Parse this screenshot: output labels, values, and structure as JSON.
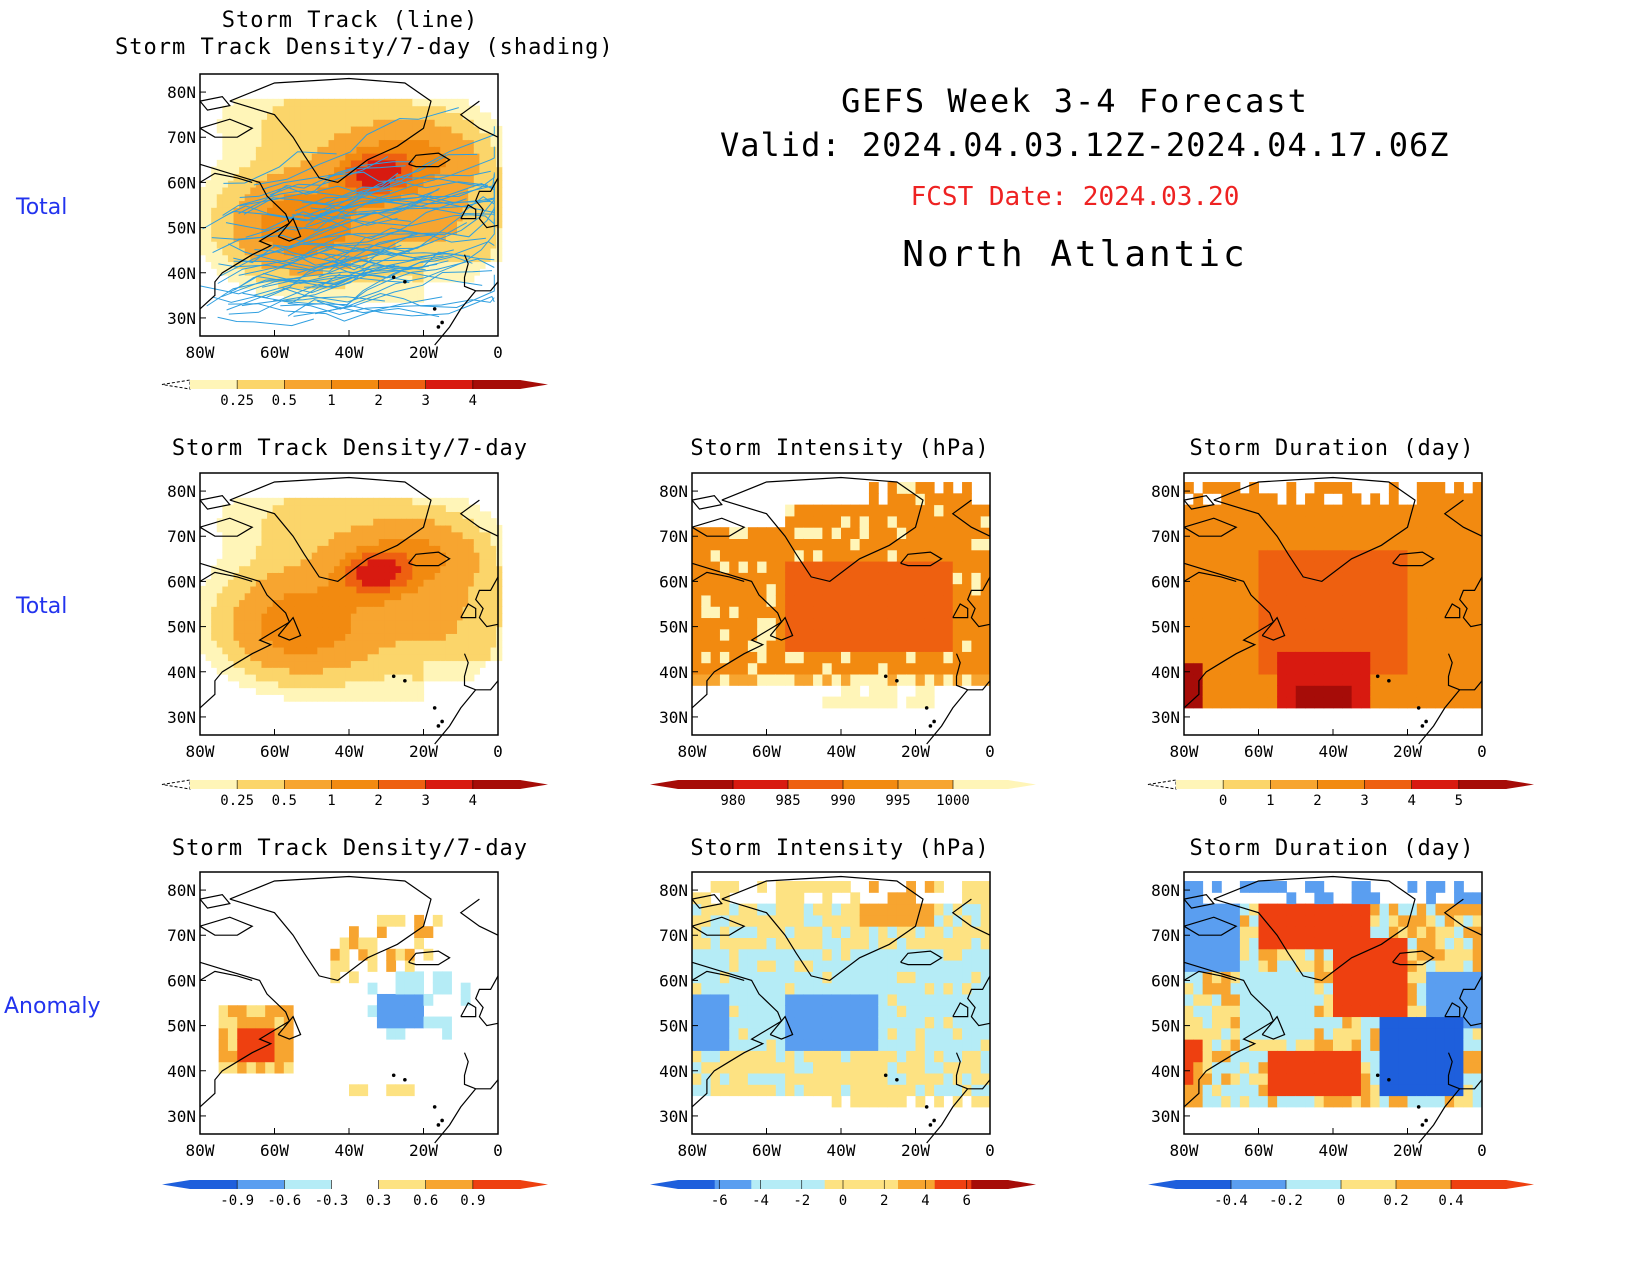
{
  "header": {
    "line1": "GEFS Week 3-4 Forecast",
    "line2": "Valid: 2024.04.03.12Z-2024.04.17.06Z",
    "fcst": "FCST Date: 2024.03.20",
    "region": "North Atlantic"
  },
  "row_labels": {
    "top": "Total",
    "middle": "Total",
    "bottom": "Anomaly"
  },
  "axes": {
    "lat_ticks": [
      "80N",
      "70N",
      "60N",
      "50N",
      "40N",
      "30N"
    ],
    "lon_ticks": [
      "80W",
      "60W",
      "40W",
      "20W",
      "0"
    ]
  },
  "panels": {
    "track": {
      "title1": "Storm Track (line)",
      "title2": "Storm Track Density/7-day (shading)"
    },
    "density": {
      "title": "Storm Track Density/7-day"
    },
    "intensity": {
      "title": "Storm Intensity (hPa)"
    },
    "duration": {
      "title": "Storm Duration (day)"
    },
    "density_anom": {
      "title": "Storm Track Density/7-day"
    },
    "intensity_anom": {
      "title": "Storm Intensity (hPa)"
    },
    "duration_anom": {
      "title": "Storm Duration (day)"
    }
  },
  "colorbars": {
    "density": {
      "labels": [
        "0.25",
        "0.5",
        "1",
        "2",
        "3",
        "4"
      ],
      "colors": [
        "#fff5b8",
        "#fbd56a",
        "#f7a530",
        "#f28a10",
        "#ee6010",
        "#d81a10",
        "#a60c08"
      ]
    },
    "intensity": {
      "labels": [
        "980",
        "985",
        "990",
        "995",
        "1000"
      ],
      "colors": [
        "#a60c08",
        "#d81a10",
        "#ee6010",
        "#f28a10",
        "#f7a530",
        "#fff5b8"
      ]
    },
    "duration": {
      "labels": [
        "0",
        "1",
        "2",
        "3",
        "4",
        "5"
      ],
      "colors": [
        "#fff5b8",
        "#fbd56a",
        "#f7a530",
        "#f28a10",
        "#ee6010",
        "#d81a10",
        "#a60c08"
      ]
    },
    "density_anom": {
      "labels": [
        "-0.9",
        "-0.6",
        "-0.3",
        "0.3",
        "0.6",
        "0.9"
      ],
      "colors": [
        "#1e5fdc",
        "#5a9ef0",
        "#b5ecf6",
        "#ffffff",
        "#fde282",
        "#f7a530",
        "#ee4010"
      ]
    },
    "intensity_anom": {
      "labels": [
        "-6",
        "-4",
        "-2",
        "0",
        "2",
        "4",
        "6"
      ],
      "colors": [
        "#1e5fdc",
        "#5a9ef0",
        "#b5ecf6",
        "#b5ecf6",
        "#fde282",
        "#fde282",
        "#f7a530",
        "#ee4010",
        "#a60c08"
      ]
    },
    "duration_anom": {
      "labels": [
        "-0.4",
        "-0.2",
        "0",
        "0.2",
        "0.4"
      ],
      "colors": [
        "#1e5fdc",
        "#5a9ef0",
        "#b5ecf6",
        "#fde282",
        "#f7a530",
        "#ee4010"
      ]
    }
  },
  "colors": {
    "title_blue": "#2233ee",
    "fcst_red": "#ee2222",
    "track_line": "#2f9fe0"
  }
}
